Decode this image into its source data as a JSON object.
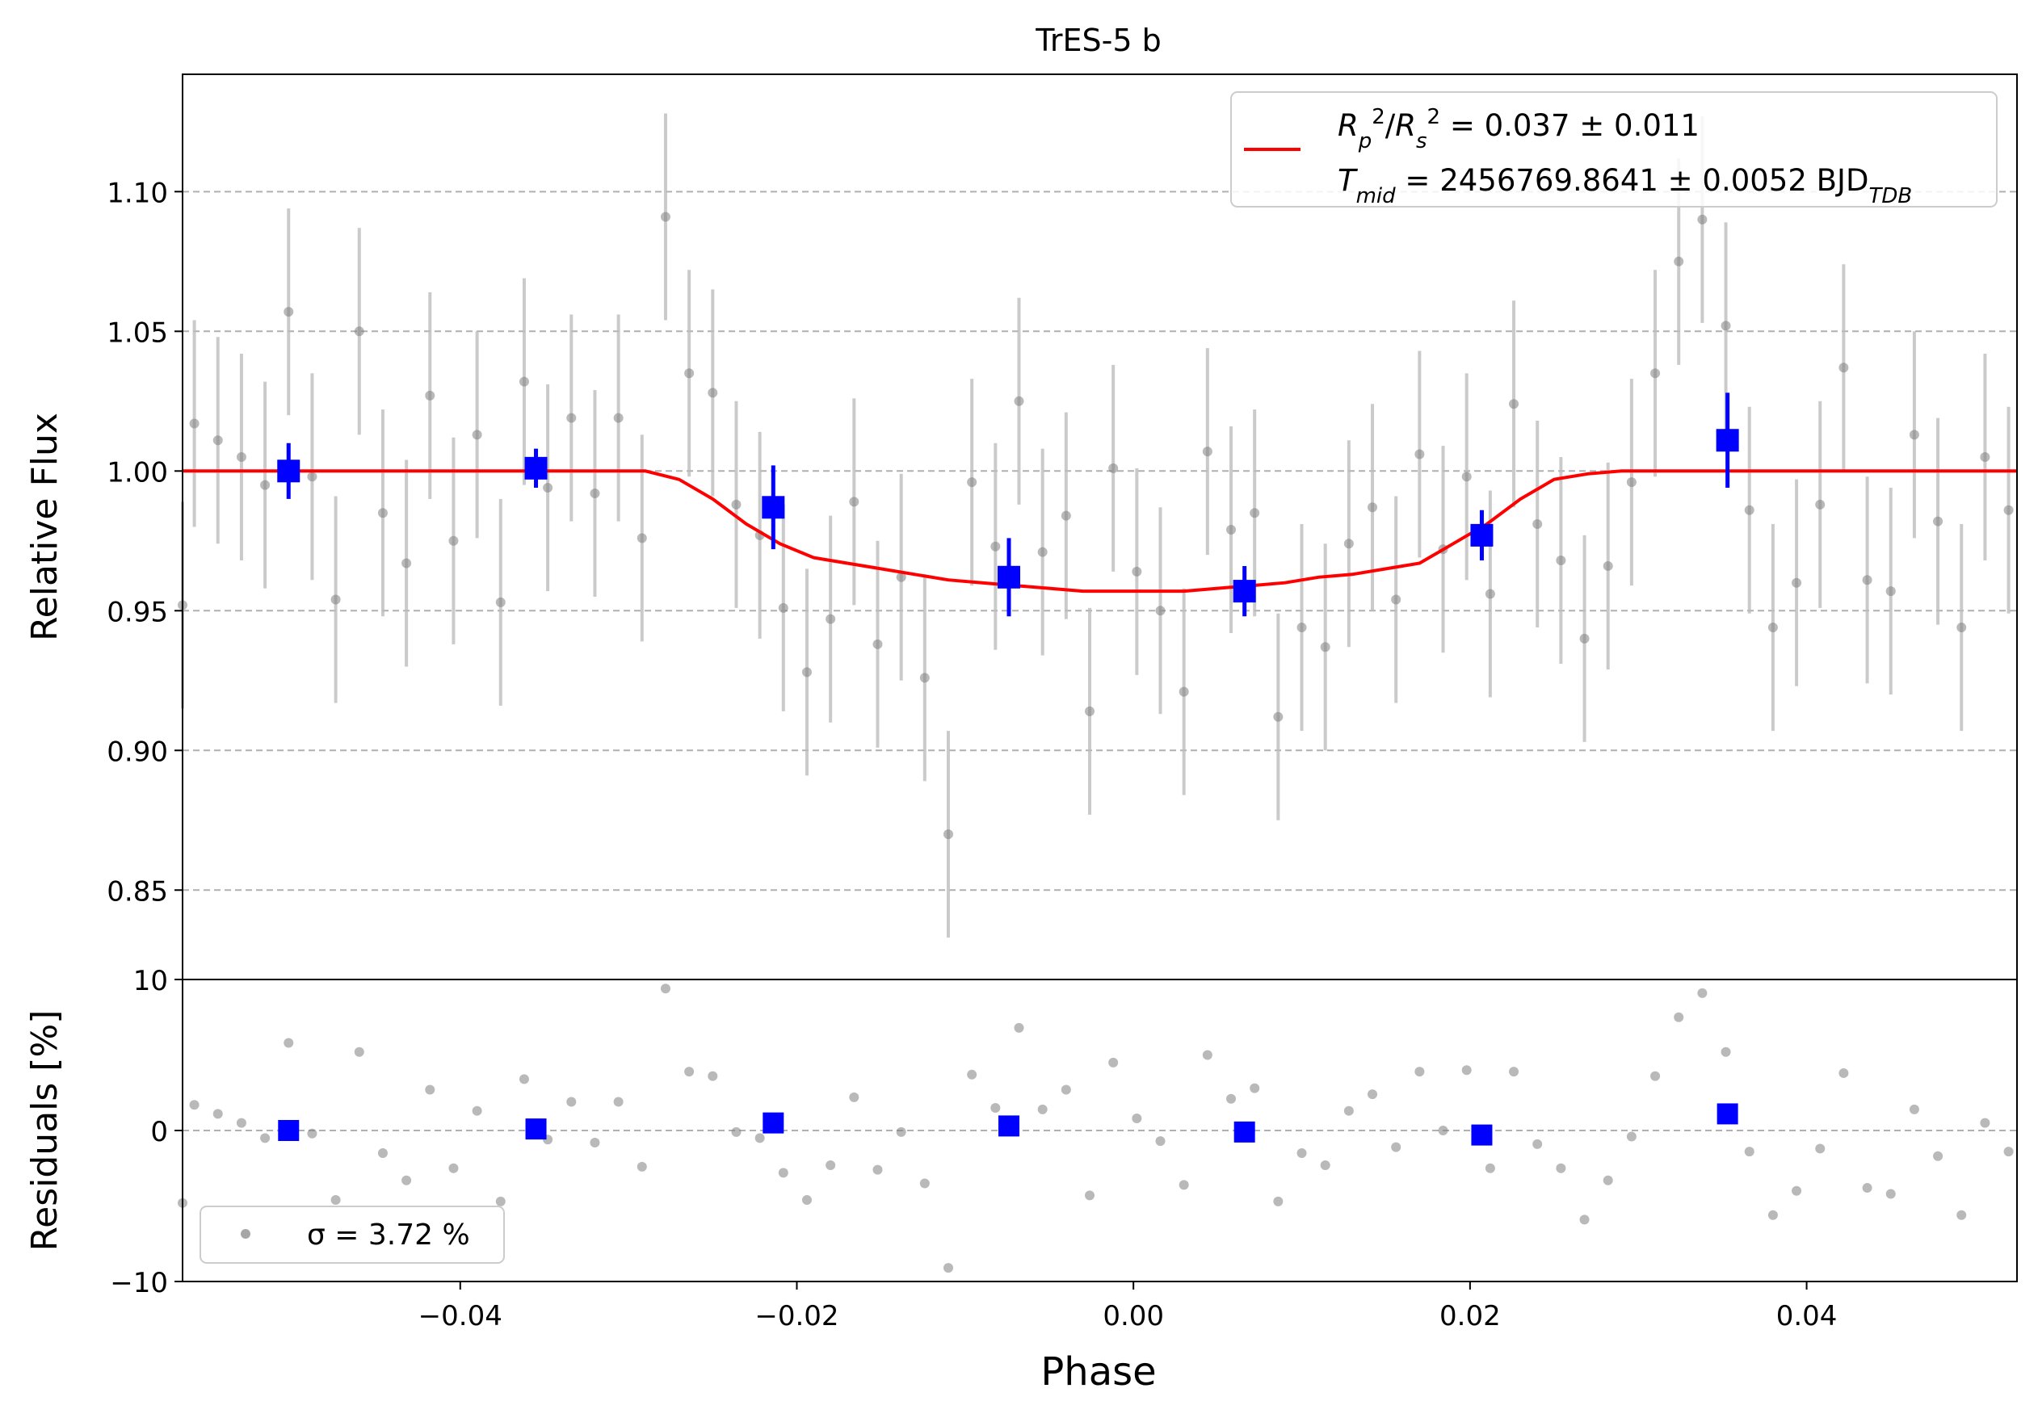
{
  "chart_data": [
    {
      "type": "scatter",
      "title": "TrES-5 b",
      "xlabel": "",
      "ylabel": "Relative Flux",
      "xlim": [
        -0.0565,
        0.0525
      ],
      "ylim": [
        0.818,
        1.142
      ],
      "yticks": [
        0.85,
        0.9,
        0.95,
        1.0,
        1.05,
        1.1
      ],
      "ytick_labels": [
        "0.85",
        "0.90",
        "0.95",
        "1.00",
        "1.05",
        "1.10"
      ],
      "grid": "horizontal dashed",
      "legend": {
        "placement": "top-right",
        "line1": "R_p^2/R_s^2 = 0.037 ± 0.011",
        "line2": "T_mid = 2456769.8641 ± 0.0052 BJD_TDB",
        "line_color": "#ff0000"
      },
      "raw_data": {
        "color": "#808080",
        "error": 0.037,
        "x": [
          -0.0565,
          -0.0558,
          -0.0544,
          -0.053,
          -0.0516,
          -0.0502,
          -0.0488,
          -0.0474,
          -0.046,
          -0.0446,
          -0.0432,
          -0.0418,
          -0.0404,
          -0.039,
          -0.0376,
          -0.0362,
          -0.0348,
          -0.0334,
          -0.032,
          -0.0306,
          -0.0292,
          -0.0278,
          -0.0264,
          -0.025,
          -0.0236,
          -0.0222,
          -0.0208,
          -0.0194,
          -0.018,
          -0.0166,
          -0.0152,
          -0.0138,
          -0.0124,
          -0.011,
          -0.0096,
          -0.0082,
          -0.0068,
          -0.0054,
          -0.004,
          -0.0026,
          -0.0012,
          0.0002,
          0.0016,
          0.003,
          0.0044,
          0.0058,
          0.0072,
          0.0086,
          0.01,
          0.0114,
          0.0128,
          0.0142,
          0.0156,
          0.017,
          0.0184,
          0.0198,
          0.0212,
          0.0226,
          0.024,
          0.0254,
          0.0268,
          0.0282,
          0.0296,
          0.031,
          0.0324,
          0.0338,
          0.0352,
          0.0366,
          0.038,
          0.0394,
          0.0408,
          0.0422,
          0.0436,
          0.045,
          0.0464,
          0.0478,
          0.0492,
          0.0506,
          0.052
        ],
        "y": [
          0.952,
          1.017,
          1.011,
          1.005,
          0.995,
          1.057,
          0.998,
          0.954,
          1.05,
          0.985,
          0.967,
          1.027,
          0.975,
          1.013,
          0.953,
          1.032,
          0.994,
          1.019,
          0.992,
          1.019,
          0.976,
          1.091,
          1.035,
          1.028,
          0.988,
          0.977,
          0.951,
          0.928,
          0.947,
          0.989,
          0.938,
          0.962,
          0.926,
          0.87,
          0.996,
          0.973,
          1.025,
          0.971,
          0.984,
          0.914,
          1.001,
          0.964,
          0.95,
          0.921,
          1.007,
          0.979,
          0.985,
          0.912,
          0.944,
          0.937,
          0.974,
          0.987,
          0.954,
          1.006,
          0.972,
          0.998,
          0.956,
          1.024,
          0.981,
          0.968,
          0.94,
          0.966,
          0.996,
          1.035,
          1.075,
          1.09,
          1.052,
          0.986,
          0.944,
          0.96,
          0.988,
          1.037,
          0.961,
          0.957,
          1.013,
          0.982,
          0.944,
          1.005,
          0.986
        ]
      },
      "binned_data": {
        "color": "#0000ff",
        "x": [
          -0.0502,
          -0.0355,
          -0.0214,
          -0.0074,
          0.0066,
          0.0207,
          0.0353
        ],
        "y": [
          1.0,
          1.001,
          0.987,
          0.962,
          0.957,
          0.977,
          1.011
        ],
        "err": [
          0.01,
          0.007,
          0.015,
          0.014,
          0.009,
          0.009,
          0.017
        ]
      },
      "model": {
        "color": "#ff0000",
        "x": [
          -0.0565,
          -0.029,
          -0.027,
          -0.025,
          -0.023,
          -0.021,
          -0.019,
          -0.017,
          -0.015,
          -0.013,
          -0.011,
          -0.009,
          -0.007,
          -0.005,
          -0.003,
          -0.001,
          0.001,
          0.003,
          0.005,
          0.007,
          0.009,
          0.011,
          0.013,
          0.015,
          0.017,
          0.019,
          0.021,
          0.023,
          0.025,
          0.027,
          0.029,
          0.0525
        ],
        "y": [
          1.0,
          1.0,
          0.997,
          0.99,
          0.981,
          0.974,
          0.969,
          0.967,
          0.965,
          0.963,
          0.961,
          0.96,
          0.959,
          0.958,
          0.957,
          0.957,
          0.957,
          0.957,
          0.958,
          0.959,
          0.96,
          0.962,
          0.963,
          0.965,
          0.967,
          0.974,
          0.981,
          0.99,
          0.997,
          0.999,
          1.0,
          1.0
        ]
      }
    },
    {
      "type": "scatter",
      "title": "",
      "xlabel": "Phase",
      "ylabel": "Residuals [%]",
      "xlim": [
        -0.0565,
        0.0525
      ],
      "ylim": [
        -10,
        10
      ],
      "yticks": [
        -10,
        0,
        10
      ],
      "ytick_labels": [
        "−10",
        "0",
        "10"
      ],
      "xticks": [
        -0.04,
        -0.02,
        0.0,
        0.02,
        0.04
      ],
      "xtick_labels": [
        "−0.04",
        "−0.02",
        "0.00",
        "0.02",
        "0.04"
      ],
      "grid": "horizontal dashed",
      "legend": {
        "placement": "bottom-left",
        "label": "σ = 3.72 %"
      },
      "raw_residuals": [
        -4.8,
        1.7,
        1.1,
        0.5,
        -0.5,
        5.8,
        -0.2,
        -4.6,
        5.2,
        -1.5,
        -3.3,
        2.7,
        -2.5,
        1.3,
        -4.7,
        3.4,
        -0.6,
        1.9,
        -0.8,
        1.9,
        -2.4,
        9.4,
        3.9,
        3.6,
        -0.1,
        -0.5,
        -2.8,
        -4.6,
        -2.3,
        2.2,
        -2.6,
        -0.1,
        -3.5,
        -9.1,
        3.7,
        1.5,
        6.8,
        1.4,
        2.7,
        -4.3,
        4.5,
        0.8,
        -0.7,
        -3.6,
        5.0,
        2.1,
        2.8,
        -4.7,
        -1.5,
        -2.3,
        1.3,
        2.4,
        -1.1,
        3.9,
        0.0,
        4.0,
        -2.5,
        3.9,
        -0.9,
        -2.5,
        -5.9,
        -3.3,
        -0.4,
        3.6,
        7.5,
        9.1,
        5.2,
        -1.4,
        -5.6,
        -4.0,
        -1.2,
        3.8,
        -3.8,
        -4.2,
        1.4,
        -1.7,
        -5.6,
        0.5,
        -1.4
      ],
      "binned_residuals": [
        0.0,
        0.1,
        0.5,
        0.3,
        -0.1,
        -0.3,
        1.1
      ]
    }
  ]
}
